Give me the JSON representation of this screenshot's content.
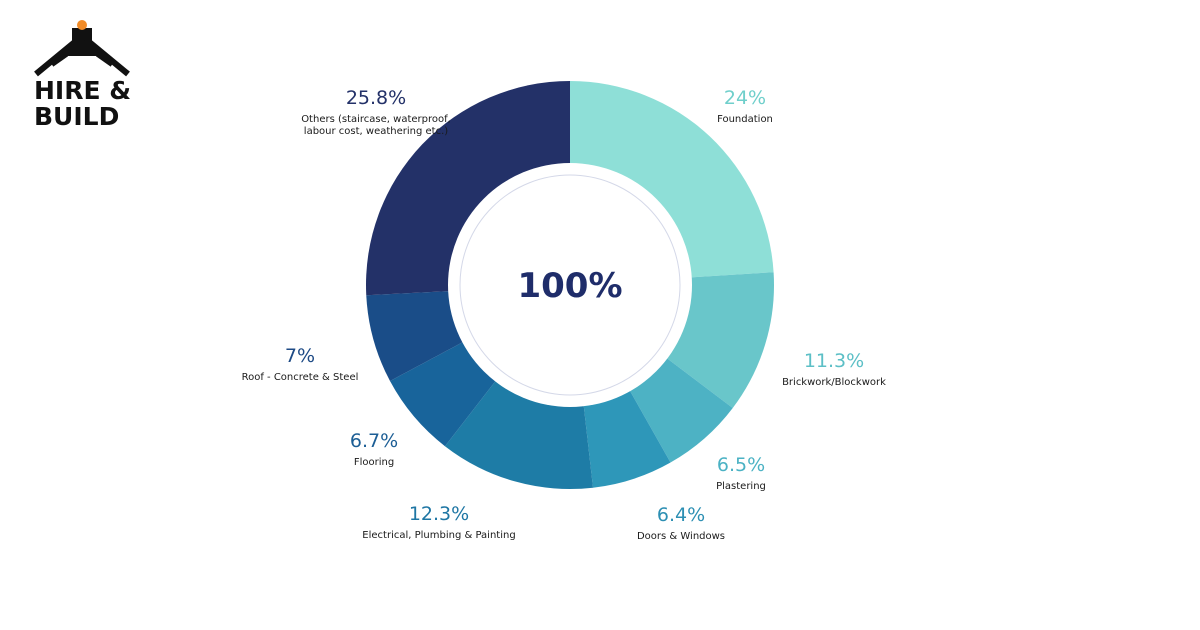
{
  "logo": {
    "line1": "HIRE &",
    "line2": "BUILD"
  },
  "chart_data": {
    "type": "pie",
    "variant": "donut",
    "center_label": "100%",
    "slices": [
      {
        "label": "Foundation",
        "value_text": "24%",
        "value": 24,
        "color": "#8EDFD7",
        "text_color": "#6FCFCB"
      },
      {
        "label": "Brickwork/Blockwork",
        "value_text": "11.3%",
        "value": 11.3,
        "color": "#69C6CA",
        "text_color": "#5CBFC6"
      },
      {
        "label": "Plastering",
        "value_text": "6.5%",
        "value": 6.5,
        "color": "#4DB2C4",
        "text_color": "#4BB2C4"
      },
      {
        "label": "Doors & Windows",
        "value_text": "6.4%",
        "value": 6.4,
        "color": "#2E97B9",
        "text_color": "#2C8FB3"
      },
      {
        "label": "Electrical, Plumbing & Painting",
        "value_text": "12.3%",
        "value": 12.3,
        "color": "#1E7CA6",
        "text_color": "#1E76A4"
      },
      {
        "label": "Flooring",
        "value_text": "6.7%",
        "value": 6.7,
        "color": "#18649B",
        "text_color": "#1C5E95"
      },
      {
        "label": "Roof - Concrete & Steel",
        "value_text": "7%",
        "value": 7,
        "color": "#1A4D88",
        "text_color": "#1D4A85"
      },
      {
        "label": "Others (staircase, waterproof, labour cost, weathering etc.)",
        "label_lines": [
          "Others (staircase, waterproof,",
          "labour cost, weathering etc.)"
        ],
        "value_text": "25.8%",
        "value": 25.8,
        "color": "#233168",
        "text_color": "#233168"
      }
    ]
  }
}
